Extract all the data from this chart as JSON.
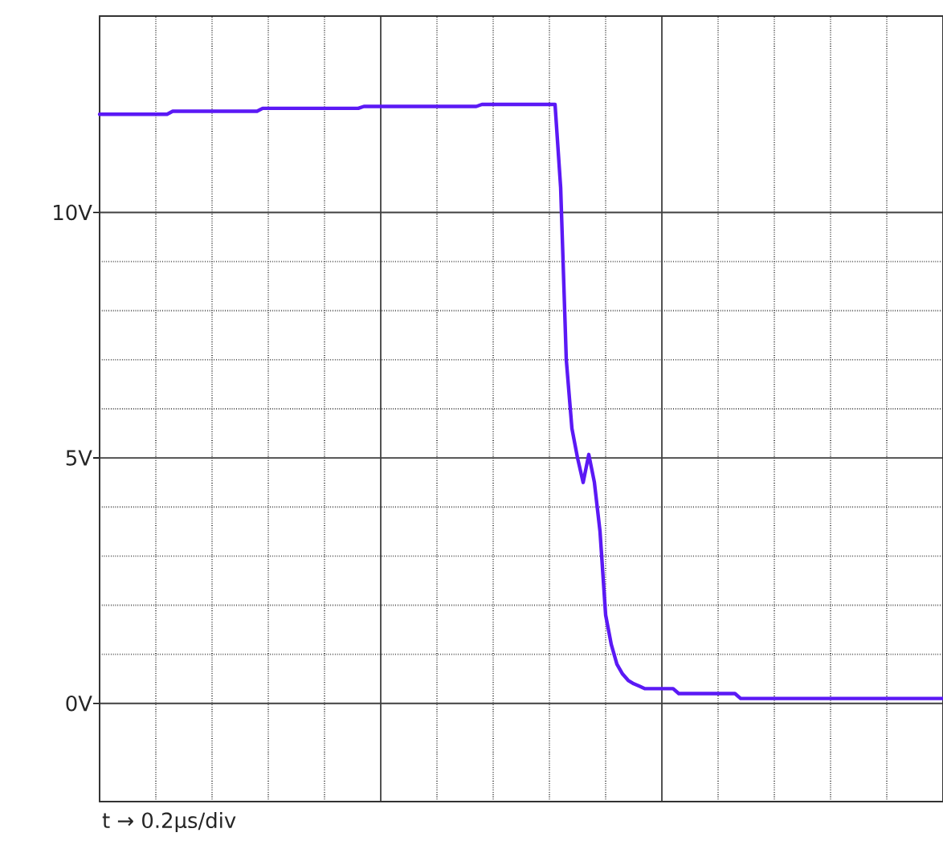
{
  "chart_data": {
    "type": "line",
    "xlabel": "t → 0.2μs/div",
    "categories": [
      null,
      null,
      null,
      null,
      null,
      null,
      null,
      null,
      null,
      null,
      null,
      null,
      null,
      null,
      null,
      null,
      null,
      null,
      null,
      null,
      null,
      null,
      null,
      null,
      null,
      null,
      null,
      null,
      null,
      null,
      null,
      null,
      null,
      null,
      null,
      null,
      null,
      null,
      null,
      null,
      null,
      null,
      null,
      null,
      null,
      null,
      null,
      null,
      null,
      null,
      null,
      null,
      null,
      null,
      null,
      null,
      null,
      null,
      null,
      null,
      null,
      null,
      null,
      null,
      null,
      null,
      null,
      null,
      null,
      null,
      null,
      null,
      null,
      null,
      null,
      null,
      null,
      null,
      null,
      null,
      null,
      null,
      null,
      null,
      null,
      null,
      null,
      null,
      null,
      null,
      null,
      null,
      null,
      null,
      null,
      null,
      null,
      null,
      null,
      null,
      null,
      null,
      null,
      null,
      null,
      null,
      null,
      null,
      null,
      null,
      null,
      null,
      null,
      null,
      null,
      null,
      null,
      null,
      null,
      null,
      null,
      null,
      null,
      null,
      null,
      null,
      null,
      null,
      null,
      null,
      null,
      null,
      null,
      null,
      null,
      null,
      null,
      null,
      null,
      null,
      null,
      null,
      null,
      null,
      null,
      null,
      null,
      null,
      null,
      null,
      null
    ],
    "ylim": [
      -2,
      14
    ],
    "yticks": [
      {
        "value": 0,
        "label": "0V"
      },
      {
        "value": 5,
        "label": "5V"
      },
      {
        "value": 10,
        "label": "10V"
      }
    ],
    "grid": true,
    "series": [
      {
        "color": "#5b19f5",
        "values": [
          12.0,
          12.0,
          12.0,
          12.0,
          12.0,
          12.0,
          12.0,
          12.0,
          12.0,
          12.0,
          12.0,
          12.0,
          12.0,
          12.06,
          12.06,
          12.06,
          12.06,
          12.06,
          12.06,
          12.06,
          12.06,
          12.06,
          12.06,
          12.06,
          12.06,
          12.06,
          12.06,
          12.06,
          12.06,
          12.12,
          12.12,
          12.12,
          12.12,
          12.12,
          12.12,
          12.12,
          12.12,
          12.12,
          12.12,
          12.12,
          12.12,
          12.12,
          12.12,
          12.12,
          12.12,
          12.12,
          12.12,
          12.16,
          12.16,
          12.16,
          12.16,
          12.16,
          12.16,
          12.16,
          12.16,
          12.16,
          12.16,
          12.16,
          12.16,
          12.16,
          12.16,
          12.16,
          12.16,
          12.16,
          12.16,
          12.16,
          12.16,
          12.16,
          12.2,
          12.2,
          12.2,
          12.2,
          12.2,
          12.2,
          12.2,
          12.2,
          12.2,
          12.2,
          12.2,
          12.2,
          12.2,
          12.2,
          10.5,
          7.0,
          5.6,
          5.0,
          4.5,
          5.07,
          4.5,
          3.5,
          1.8,
          1.2,
          0.8,
          0.6,
          0.47,
          0.4,
          0.35,
          0.3,
          0.3,
          0.3,
          0.3,
          0.3,
          0.3,
          0.2,
          0.2,
          0.2,
          0.2,
          0.2,
          0.2,
          0.2,
          0.2,
          0.2,
          0.2,
          0.2,
          0.1,
          0.1,
          0.1,
          0.1,
          0.1,
          0.1,
          0.1,
          0.1,
          0.1,
          0.1,
          0.1,
          0.1,
          0.1,
          0.1,
          0.1,
          0.1,
          0.1,
          0.1,
          0.1,
          0.1,
          0.1,
          0.1,
          0.1,
          0.1,
          0.1,
          0.1,
          0.1,
          0.1,
          0.1,
          0.1,
          0.1,
          0.1,
          0.1,
          0.1,
          0.1,
          0.1,
          0.1
        ]
      }
    ]
  }
}
